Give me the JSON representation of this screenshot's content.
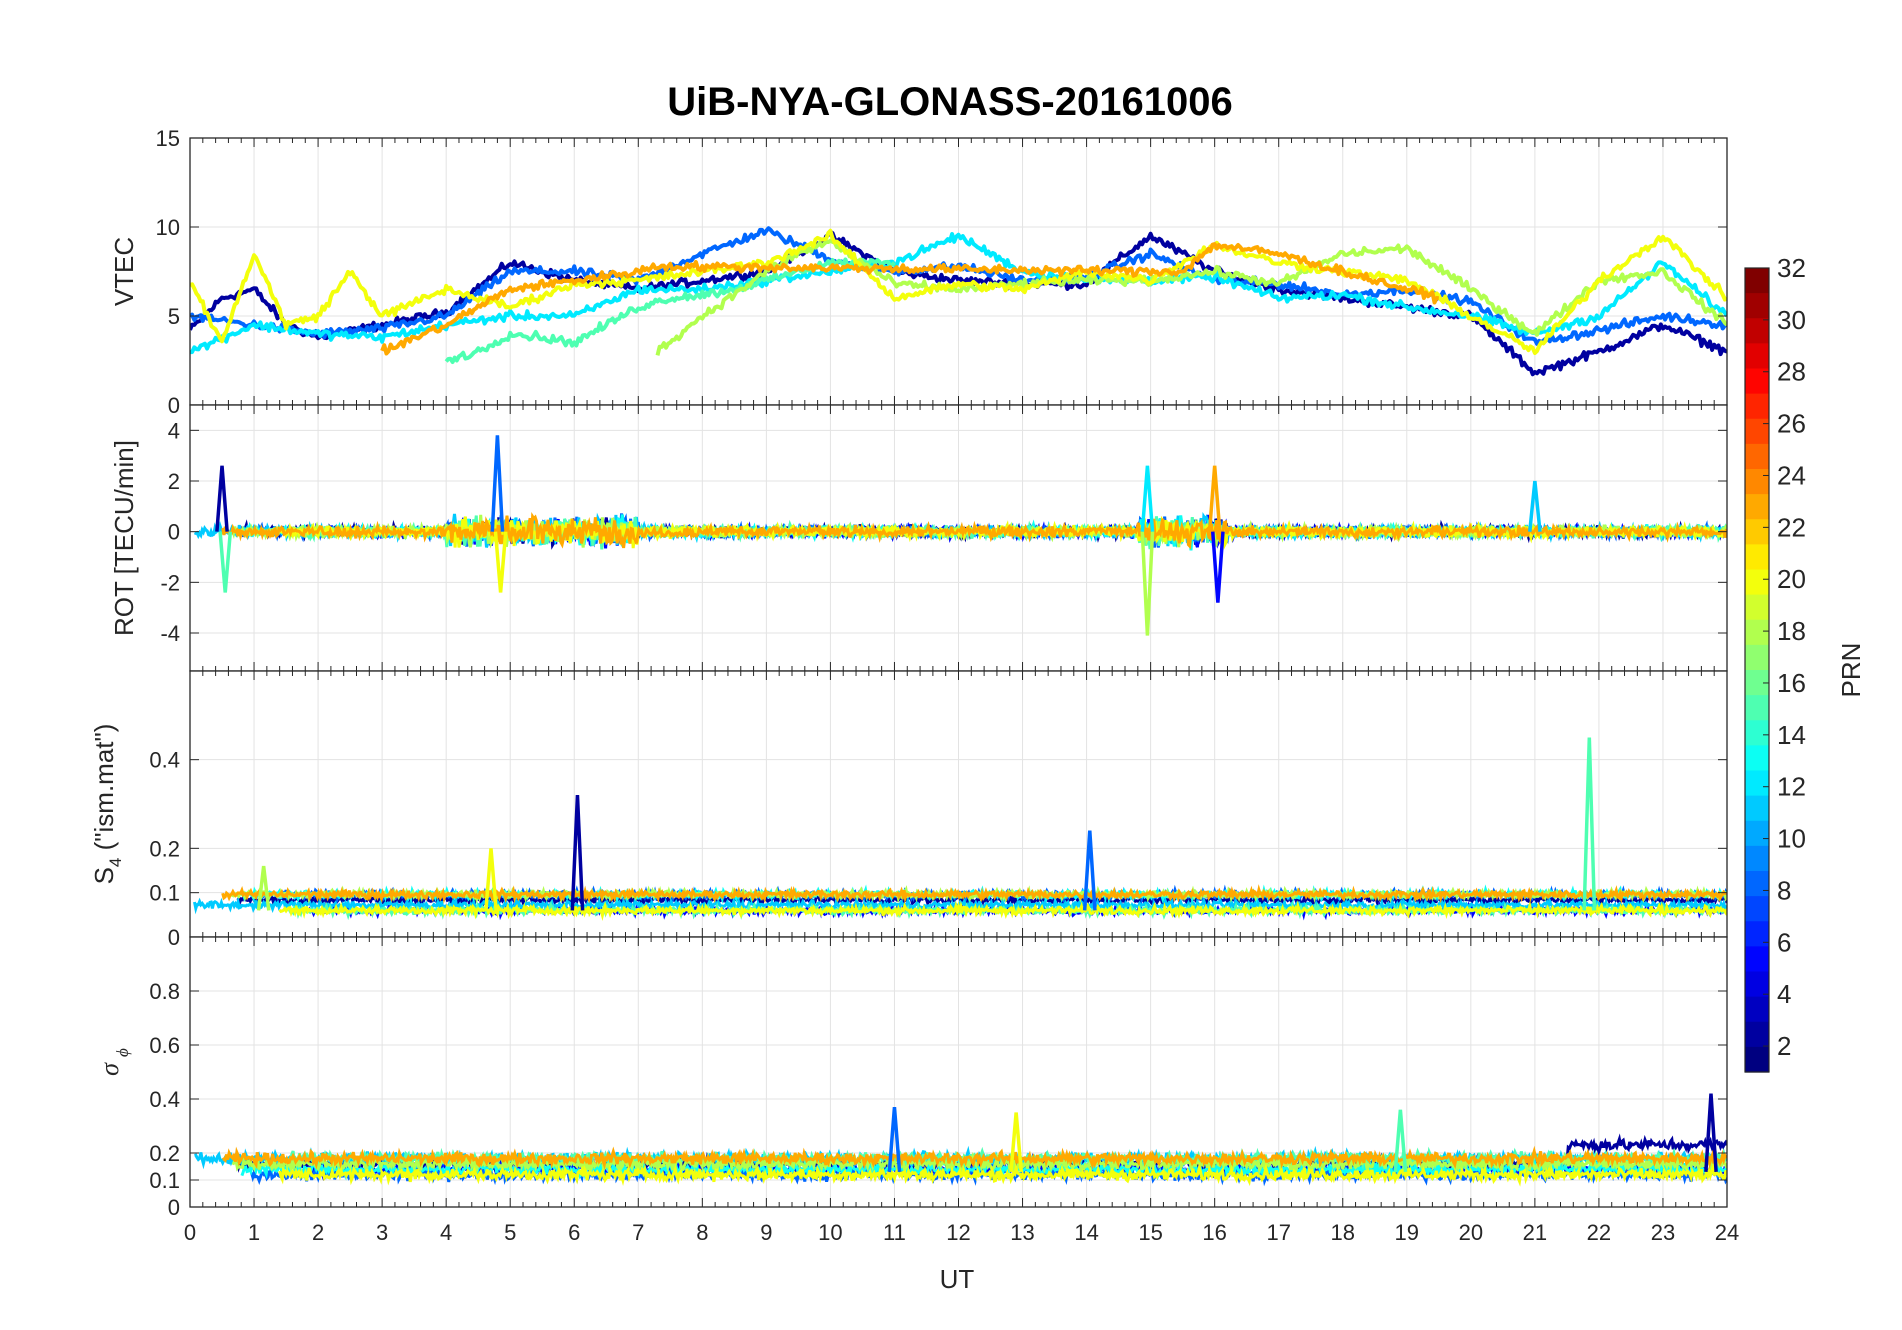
{
  "title": "UiB-NYA-GLONASS-20161006",
  "xlabel": "UT",
  "x_ticks": [
    "0",
    "1",
    "2",
    "3",
    "4",
    "5",
    "6",
    "7",
    "8",
    "9",
    "10",
    "11",
    "12",
    "13",
    "14",
    "15",
    "16",
    "17",
    "18",
    "19",
    "20",
    "21",
    "22",
    "23",
    "24"
  ],
  "colorbar": {
    "label": "PRN",
    "ticks": [
      "2",
      "4",
      "6",
      "8",
      "10",
      "12",
      "14",
      "16",
      "18",
      "20",
      "22",
      "24",
      "26",
      "28",
      "30",
      "32"
    ],
    "range": [
      1,
      32
    ],
    "colormap": "jet"
  },
  "panels": {
    "vtec": {
      "ylabel": "VTEC",
      "ticks": [
        "0",
        "5",
        "10",
        "15"
      ],
      "ylim": [
        0,
        15
      ]
    },
    "rot": {
      "ylabel": "ROT [TECU/min]",
      "ticks": [
        "-4",
        "-2",
        "0",
        "2",
        "4"
      ],
      "ylim": [
        -5.5,
        5
      ]
    },
    "s4": {
      "ylabel_main": "S",
      "ylabel_sub": "4",
      "ylabel_rest": " (\"ism.mat\")",
      "ticks": [
        "0",
        "0.1",
        "0.2",
        "0.4"
      ],
      "ylim": [
        0,
        0.6
      ]
    },
    "sigma": {
      "ylabel_main": "σ",
      "ylabel_sub": "ϕ",
      "ticks": [
        "0",
        "0.1",
        "0.2",
        "0.4",
        "0.6",
        "0.8"
      ],
      "ylim": [
        0,
        1.0
      ]
    }
  },
  "chart_data": [
    {
      "type": "line",
      "title": "UiB-NYA-GLONASS-20161006",
      "xlabel": "UT",
      "ylabel": "VTEC",
      "xlim": [
        0,
        24
      ],
      "ylim": [
        0,
        15
      ],
      "grid": true,
      "colorbar": "PRN",
      "series": [
        {
          "prn": 2,
          "x": [
            0,
            0.5,
            1,
            1.5,
            2,
            3,
            4,
            5,
            5.5,
            6,
            7,
            8,
            9,
            10,
            11,
            12,
            13,
            14,
            15,
            16,
            17,
            18,
            19,
            20,
            21,
            22,
            23,
            24
          ],
          "values": [
            4.2,
            6,
            6.5,
            4.5,
            3.8,
            4.5,
            5.2,
            8,
            7.5,
            7,
            6.5,
            7,
            7.5,
            9.5,
            7.5,
            7,
            6.8,
            6.8,
            9.5,
            7.5,
            6.5,
            6,
            5.5,
            5,
            1.8,
            3,
            4.5,
            3
          ]
        },
        {
          "prn": 8,
          "x": [
            0,
            1,
            2,
            3,
            4,
            5,
            6,
            7,
            8,
            9,
            10,
            11,
            12,
            13,
            14,
            15,
            16,
            17,
            18,
            19,
            20,
            21,
            22,
            23,
            24
          ],
          "values": [
            5,
            4.5,
            4,
            4.3,
            5,
            7.5,
            7.5,
            7,
            8.5,
            9.8,
            8.2,
            7.5,
            7.8,
            7,
            7.2,
            8.5,
            7,
            6.8,
            6.2,
            6.5,
            5.8,
            3.5,
            4.2,
            5,
            4.5
          ]
        },
        {
          "prn": 12,
          "x": [
            0,
            1,
            2,
            3,
            4,
            5,
            6,
            7,
            8,
            9,
            10,
            11,
            12,
            13,
            14,
            15,
            16,
            17,
            18,
            19,
            20,
            21,
            22,
            23,
            24
          ],
          "values": [
            3,
            4.5,
            4,
            3.8,
            4.5,
            5,
            5,
            6.5,
            6.5,
            7,
            7.5,
            8,
            9.5,
            7.5,
            7,
            7,
            7.2,
            6,
            6.2,
            5.5,
            5,
            4,
            5,
            8,
            5
          ]
        },
        {
          "prn": 15,
          "x": [
            4,
            4.5,
            5,
            5.5,
            6,
            6.5,
            7,
            7.5,
            8,
            8.5,
            9,
            10,
            11
          ],
          "values": [
            2.5,
            3,
            4,
            3.8,
            3.5,
            4.5,
            5.5,
            6,
            6.2,
            6.5,
            7,
            8,
            8
          ]
        },
        {
          "prn": 18,
          "x": [
            7.3,
            8,
            8.5,
            9,
            9.5,
            10,
            11,
            12,
            13,
            14,
            15,
            16,
            17,
            18,
            19,
            20,
            21,
            22,
            23,
            24
          ],
          "values": [
            3,
            5,
            6.2,
            7.5,
            8.5,
            9.2,
            6.8,
            6.5,
            6.8,
            7,
            7,
            7.5,
            6.8,
            8.5,
            8.8,
            6.5,
            4,
            7,
            7.5,
            4.5
          ]
        },
        {
          "prn": 20,
          "x": [
            0,
            0.5,
            1,
            1.5,
            2,
            2.5,
            3,
            4,
            5,
            6,
            7,
            8,
            9,
            10,
            11,
            12,
            13,
            14,
            15,
            16,
            17,
            18,
            19,
            20,
            21,
            22,
            23,
            24
          ],
          "values": [
            7,
            3.5,
            8.5,
            4.5,
            5,
            7.5,
            5,
            6.5,
            5.5,
            6.8,
            7,
            7.5,
            8,
            9.5,
            6,
            6.8,
            6.5,
            7.5,
            7,
            9,
            8,
            7.5,
            7,
            5,
            3,
            7,
            9.5,
            6
          ]
        },
        {
          "prn": 23,
          "x": [
            3,
            4,
            5,
            6,
            7,
            7.3,
            15.5,
            16,
            17,
            18,
            19,
            19.5
          ],
          "values": [
            3,
            4.5,
            6.5,
            7,
            7.5,
            7.8,
            7.5,
            9,
            8.5,
            7.5,
            6.5,
            6
          ]
        }
      ]
    },
    {
      "type": "line",
      "ylabel": "ROT [TECU/min]",
      "xlim": [
        0,
        24
      ],
      "ylim": [
        -5.5,
        5
      ],
      "grid": true,
      "notable_peaks": [
        {
          "x": 0.5,
          "y": 2.6
        },
        {
          "x": 0.55,
          "y": -2.4
        },
        {
          "x": 4.8,
          "y": 3.8
        },
        {
          "x": 4.85,
          "y": -2.4
        },
        {
          "x": 14.95,
          "y": -4.1
        },
        {
          "x": 14.95,
          "y": 2.6
        },
        {
          "x": 16.0,
          "y": 2.6
        },
        {
          "x": 16.05,
          "y": -2.8
        },
        {
          "x": 21.0,
          "y": 2.0
        }
      ]
    },
    {
      "type": "line",
      "ylabel": "S4 (\"ism.mat\")",
      "xlim": [
        0,
        24
      ],
      "ylim": [
        0,
        0.6
      ],
      "grid": true,
      "notable_peaks": [
        {
          "x": 6.05,
          "y": 0.32
        },
        {
          "x": 21.85,
          "y": 0.45
        },
        {
          "x": 14.05,
          "y": 0.24
        },
        {
          "x": 4.7,
          "y": 0.2
        },
        {
          "x": 1.15,
          "y": 0.16
        }
      ]
    },
    {
      "type": "line",
      "ylabel": "σϕ",
      "xlim": [
        0,
        24
      ],
      "ylim": [
        0,
        1.0
      ],
      "grid": true,
      "notable_peaks": [
        {
          "x": 23.75,
          "y": 0.42
        },
        {
          "x": 18.9,
          "y": 0.36
        },
        {
          "x": 11.0,
          "y": 0.37
        },
        {
          "x": 12.9,
          "y": 0.35
        }
      ]
    }
  ]
}
